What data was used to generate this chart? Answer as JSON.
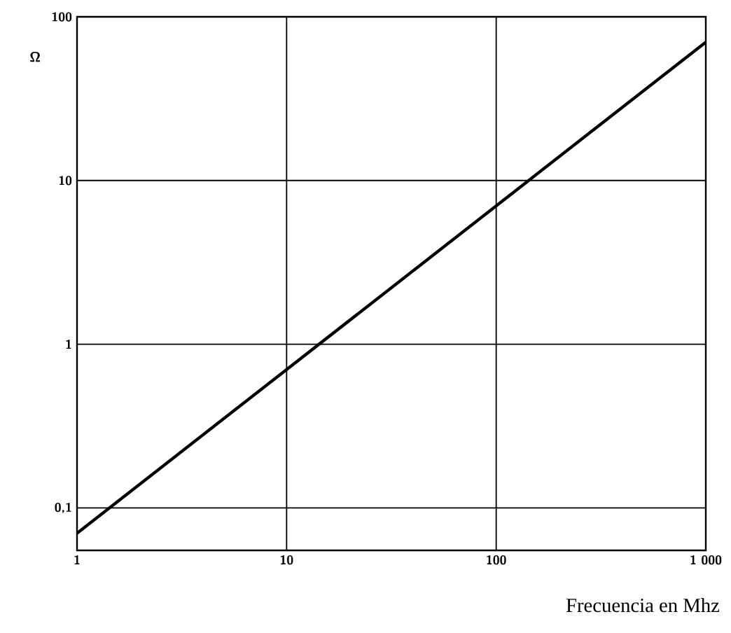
{
  "chart_data": {
    "type": "line",
    "xlabel": "Frecuencia en Mhz",
    "ylabel": "Ω",
    "log": "xy",
    "grid": true,
    "marker": "none",
    "line_style": "solid",
    "x": [
      1,
      1000
    ],
    "series": [
      {
        "color": "#000000",
        "values": [
          0.07,
          70
        ]
      }
    ],
    "xlim": [
      1,
      1000
    ],
    "ylim": [
      0.055,
      100
    ],
    "xticks": [
      1,
      10,
      100,
      {
        "value": 1000,
        "label": "1 000"
      }
    ],
    "yticks": [
      {
        "value": 0.1,
        "label": "0,1"
      },
      1,
      10,
      100
    ]
  }
}
